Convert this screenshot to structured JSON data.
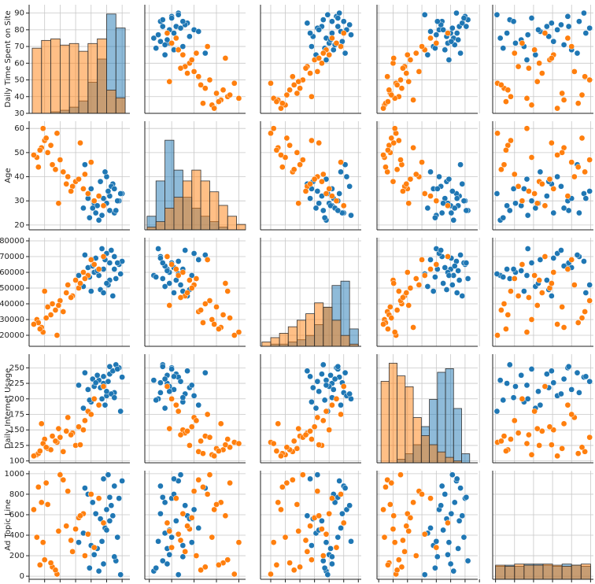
{
  "chart_data": {
    "type": "pairplot",
    "variables": [
      {
        "label": "Daily Time Spent on Site",
        "lim": [
          30,
          95
        ],
        "ticks": [
          30,
          40,
          50,
          60,
          70,
          80,
          90
        ]
      },
      {
        "label": "Age",
        "lim": [
          18,
          63
        ],
        "ticks": [
          20,
          30,
          40,
          50,
          60
        ]
      },
      {
        "label": null,
        "lim": [
          13000,
          82000
        ],
        "ticks": [
          20000,
          30000,
          40000,
          50000,
          60000,
          70000,
          80000
        ]
      },
      {
        "label": "Daily Internet Usage",
        "lim": [
          97,
          272
        ],
        "ticks": [
          100,
          125,
          150,
          175,
          200,
          225,
          250,
          275
        ]
      },
      {
        "label": "Ad Topic Line",
        "lim": [
          -30,
          1030
        ],
        "ticks": [
          0,
          200,
          400,
          600,
          800,
          1000
        ]
      }
    ],
    "series": [
      {
        "color": "#1f77b4",
        "values": [
          [
            78,
            82,
            85,
            70,
            88,
            75,
            80,
            65,
            90,
            72,
            84,
            77,
            68,
            86,
            79,
            81,
            74,
            83,
            69,
            87,
            76,
            71,
            89,
            66,
            80,
            73,
            85,
            78,
            62,
            82
          ],
          [
            28,
            32,
            25,
            35,
            30,
            22,
            40,
            27,
            33,
            29,
            37,
            24,
            31,
            26,
            42,
            34,
            28,
            36,
            23,
            30,
            38,
            27,
            33,
            45,
            29,
            25,
            35,
            31,
            39,
            26
          ],
          [
            62000,
            55000,
            70000,
            48000,
            65000,
            58000,
            72000,
            51000,
            67000,
            60000,
            45000,
            75000,
            63000,
            56000,
            68000,
            52000,
            61000,
            74000,
            57000,
            66000,
            49000,
            64000,
            59000,
            71000,
            53000,
            69000,
            62000,
            47000,
            58000,
            66000
          ],
          [
            225,
            240,
            210,
            195,
            250,
            230,
            205,
            185,
            235,
            220,
            245,
            200,
            215,
            255,
            190,
            228,
            238,
            208,
            198,
            248,
            218,
            232,
            180,
            242,
            212,
            226,
            202,
            236,
            222,
            252
          ],
          [
            120,
            540,
            880,
            300,
            760,
            50,
            650,
            420,
            930,
            210,
            590,
            340,
            800,
            150,
            470,
            990,
            270,
            690,
            80,
            380,
            560,
            720,
            15,
            860,
            450,
            610,
            190,
            950,
            330,
            770
          ]
        ]
      },
      {
        "color": "#ff7f0e",
        "values": [
          [
            45,
            60,
            38,
            72,
            52,
            40,
            65,
            35,
            55,
            48,
            78,
            42,
            58,
            36,
            68,
            50,
            44,
            62,
            39,
            75,
            47,
            54,
            33,
            66,
            41,
            57,
            70,
            37,
            49,
            63
          ],
          [
            45,
            38,
            52,
            30,
            42,
            55,
            35,
            48,
            40,
            58,
            28,
            50,
            36,
            44,
            33,
            47,
            53,
            39,
            60,
            32,
            43,
            37,
            49,
            41,
            56,
            34,
            46,
            51,
            29,
            54
          ],
          [
            40000,
            55000,
            25000,
            65000,
            35000,
            48000,
            60000,
            30000,
            52000,
            20000,
            70000,
            38000,
            45000,
            28000,
            58000,
            42000,
            33000,
            50000,
            22000,
            62000,
            36000,
            47000,
            27000,
            56000,
            31000,
            44000,
            68000,
            24000,
            39000,
            53000
          ],
          [
            140,
            125,
            160,
            200,
            115,
            135,
            150,
            110,
            170,
            130,
            220,
            120,
            145,
            112,
            180,
            138,
            118,
            155,
            128,
            190,
            132,
            148,
            108,
            165,
            122,
            142,
            175,
            116,
            152,
            126
          ],
          [
            90,
            460,
            720,
            280,
            940,
            160,
            610,
            380,
            830,
            20,
            520,
            700,
            240,
            870,
            410,
            990,
            130,
            570,
            330,
            760,
            60,
            490,
            650,
            200,
            910,
            350,
            800,
            110,
            440,
            590
          ]
        ]
      }
    ],
    "histograms": [
      {
        "bins": [
          32,
          38,
          44,
          50,
          56,
          62,
          68,
          74,
          80,
          86,
          92
        ],
        "ylim": [
          0,
          70
        ],
        "counts": [
          [
            0,
            0,
            1,
            2,
            4,
            8,
            20,
            35,
            64,
            55
          ],
          [
            42,
            47,
            48,
            44,
            45,
            40,
            45,
            48,
            15,
            10
          ]
        ]
      },
      {
        "bins": [
          19,
          23,
          27,
          31,
          35,
          39,
          43,
          47,
          51,
          55,
          59,
          63
        ],
        "ylim": [
          0,
          40
        ],
        "counts": [
          [
            5,
            18,
            33,
            22,
            12,
            8,
            5,
            3,
            1,
            0,
            0
          ],
          [
            1,
            3,
            8,
            12,
            18,
            22,
            18,
            14,
            9,
            5,
            2
          ]
        ]
      },
      {
        "bins": [
          14000,
          20000,
          26000,
          32000,
          38000,
          44000,
          50000,
          56000,
          62000,
          68000,
          74000,
          80000
        ],
        "ylim": [
          0,
          50
        ],
        "counts": [
          [
            0,
            1,
            1,
            2,
            3,
            5,
            10,
            18,
            28,
            30,
            8
          ],
          [
            2,
            4,
            6,
            9,
            12,
            15,
            20,
            18,
            12,
            5,
            1
          ]
        ]
      },
      {
        "bins": [
          104,
          118,
          132,
          146,
          160,
          174,
          188,
          202,
          216,
          230,
          244,
          258,
          272
        ],
        "ylim": [
          0,
          60
        ],
        "counts": [
          [
            0,
            0,
            2,
            5,
            10,
            20,
            35,
            50,
            52,
            30,
            5,
            0
          ],
          [
            45,
            55,
            48,
            42,
            25,
            15,
            10,
            6,
            3,
            1,
            0,
            0
          ]
        ]
      },
      {
        "bins": [
          0,
          100,
          200,
          300,
          400,
          500,
          600,
          700,
          800,
          900,
          1000
        ],
        "ylim": [
          0,
          100
        ],
        "counts": [
          [
            12,
            13,
            12,
            14,
            14,
            13,
            12,
            14,
            13,
            12
          ],
          [
            13,
            12,
            14,
            13,
            13,
            14,
            13,
            12,
            13,
            14
          ]
        ]
      }
    ]
  }
}
